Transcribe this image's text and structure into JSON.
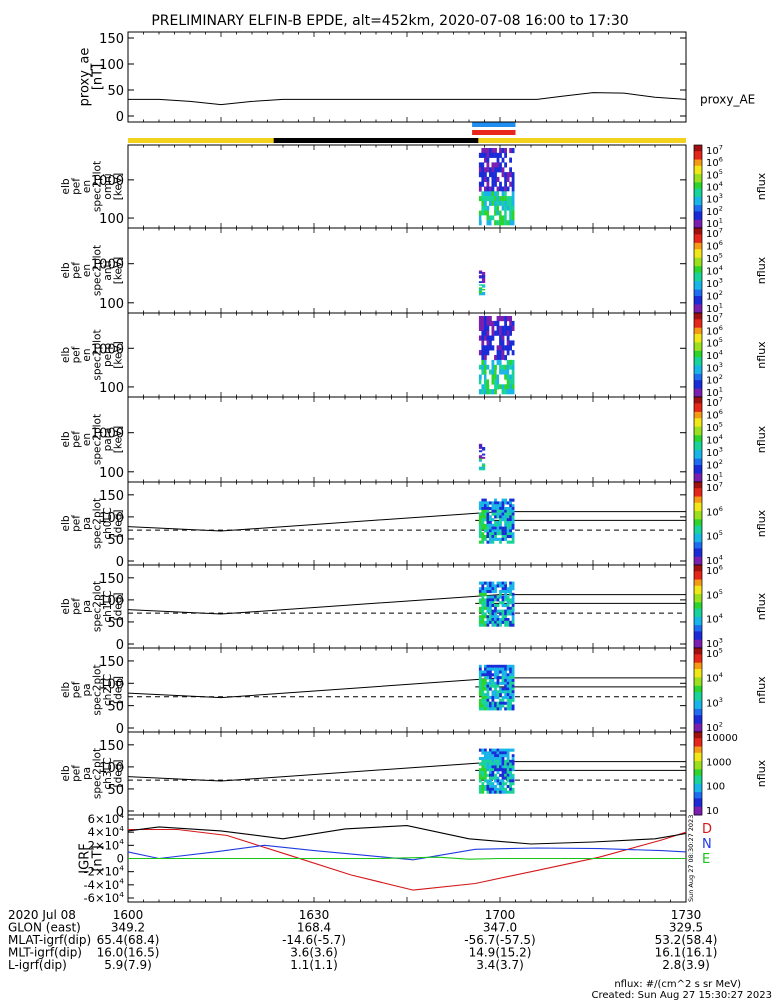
{
  "title": "PRELIMINARY ELFIN-B EPDE, alt=452km, 2020-07-08 16:00 to 17:30",
  "colors": {
    "yellow": "#f2d21c",
    "black": "#000000",
    "blue": "#1f8ef0",
    "red": "#e8261c"
  },
  "chart_data": [
    {
      "type": "line",
      "ylabel": [
        "proxy_ae",
        "[nT]"
      ],
      "yticks": [
        "150",
        "100",
        "50",
        "0"
      ],
      "ylim": [
        0,
        150
      ],
      "series": [
        {
          "name": "proxy_AE",
          "x": [
            0,
            5,
            10,
            15,
            20,
            25,
            30,
            35,
            40,
            45,
            50,
            55,
            60,
            63,
            66,
            70,
            75,
            80,
            85,
            90
          ],
          "y": [
            32,
            32,
            28,
            22,
            28,
            32,
            32,
            32,
            32,
            32,
            32,
            32,
            32,
            32,
            32,
            38,
            45,
            44,
            36,
            32
          ]
        }
      ]
    },
    {
      "type": "heatmap",
      "ylabel": [
        "elb",
        "pef",
        "en",
        "spec2plot",
        "omni",
        "[keV]"
      ],
      "yticks": [
        "1000",
        "100"
      ],
      "colorbar": {
        "label": "nflux",
        "ticks": [
          "10^7",
          "10^6",
          "10^5",
          "10^4",
          "10^3",
          "10^2",
          "10^1"
        ]
      }
    },
    {
      "type": "heatmap",
      "ylabel": [
        "elb",
        "pef",
        "en",
        "spec2plot",
        "anti",
        "[keV]"
      ],
      "yticks": [
        "1000",
        "100"
      ],
      "colorbar": {
        "label": "nflux",
        "ticks": [
          "10^7",
          "10^6",
          "10^5",
          "10^4",
          "10^3",
          "10^2",
          "10^1"
        ]
      }
    },
    {
      "type": "heatmap",
      "ylabel": [
        "elb",
        "pef",
        "en",
        "spec2plot",
        "perp",
        "[keV]"
      ],
      "yticks": [
        "1000",
        "100"
      ],
      "colorbar": {
        "label": "nflux",
        "ticks": [
          "10^7",
          "10^6",
          "10^5",
          "10^4",
          "10^3",
          "10^2",
          "10^1"
        ]
      }
    },
    {
      "type": "heatmap",
      "ylabel": [
        "elb",
        "pef",
        "en",
        "spec2plot",
        "para",
        "[keV]"
      ],
      "yticks": [
        "1000",
        "100"
      ],
      "colorbar": {
        "label": "nflux",
        "ticks": [
          "10^7",
          "10^6",
          "10^5",
          "10^4",
          "10^3",
          "10^2",
          "10^1"
        ]
      }
    },
    {
      "type": "heatmap",
      "ylabel": [
        "elb",
        "pef",
        "pa",
        "spec2plot",
        "ch0LC",
        "[deg]"
      ],
      "yticks": [
        "150",
        "100",
        "50",
        "0"
      ],
      "colorbar": {
        "label": "nflux",
        "ticks": [
          "10^7",
          "10^6",
          "10^5",
          "10^4"
        ]
      }
    },
    {
      "type": "heatmap",
      "ylabel": [
        "elb",
        "pef",
        "pa",
        "spec2plot",
        "ch1LC",
        "[deg]"
      ],
      "yticks": [
        "150",
        "100",
        "50",
        "0"
      ],
      "colorbar": {
        "label": "nflux",
        "ticks": [
          "10^6",
          "10^5",
          "10^4",
          "10^3"
        ]
      }
    },
    {
      "type": "heatmap",
      "ylabel": [
        "elb",
        "pef",
        "pa",
        "spec2plot",
        "ch2LC",
        "[deg]"
      ],
      "yticks": [
        "150",
        "100",
        "50",
        "0"
      ],
      "colorbar": {
        "label": "nflux",
        "ticks": [
          "10^5",
          "10^4",
          "10^3",
          "10^2"
        ]
      }
    },
    {
      "type": "heatmap",
      "ylabel": [
        "elb",
        "pef",
        "pa",
        "spec2plot",
        "ch3LC",
        "[deg]"
      ],
      "yticks": [
        "150",
        "100",
        "50",
        "0"
      ],
      "colorbar": {
        "label": "nflux",
        "ticks": [
          "10000",
          "1000",
          "100",
          "10"
        ]
      }
    },
    {
      "type": "line",
      "ylabel": [
        "IGRF",
        "[nT]"
      ],
      "yticks": [
        "6×10^4",
        "4×10^4",
        "2×10^4",
        "0",
        "−2×10^4",
        "−4×10^4",
        "−6×10^4"
      ],
      "ylim": [
        -60000,
        60000
      ],
      "legend": [
        "D",
        "N",
        "E"
      ],
      "series": [
        {
          "name": "D",
          "x": [
            0,
            8,
            16,
            26,
            36,
            46,
            56,
            66,
            76,
            86,
            90
          ],
          "y": [
            44000,
            44000,
            35000,
            5000,
            -25000,
            -48000,
            -38000,
            -18000,
            2000,
            28000,
            40000
          ]
        },
        {
          "name": "N",
          "x": [
            0,
            5,
            14,
            22,
            30,
            38,
            46,
            56,
            66,
            76,
            86,
            90
          ],
          "y": [
            10000,
            0,
            10000,
            20000,
            12000,
            5000,
            -2000,
            14000,
            16000,
            15000,
            12000,
            10000
          ]
        },
        {
          "name": "E",
          "x": [
            0,
            10,
            20,
            30,
            40,
            50,
            55,
            60,
            70,
            80,
            90
          ],
          "y": [
            0,
            0,
            0,
            0,
            0,
            2000,
            -1000,
            0,
            0,
            0,
            0
          ]
        },
        {
          "name": "",
          "x": [
            0,
            5,
            15,
            25,
            35,
            45,
            55,
            65,
            75,
            85,
            90
          ],
          "y": [
            42000,
            48000,
            42000,
            30000,
            45000,
            50000,
            30000,
            22000,
            25000,
            30000,
            38000
          ]
        }
      ]
    }
  ],
  "xaxis": {
    "row_labels": [
      "2020 Jul 08",
      "GLON (east)",
      "MLAT-igrf(dip)",
      "MLT-igrf(dip)",
      "L-igrf(dip)"
    ],
    "columns": [
      {
        "x": 0,
        "values": [
          "1600",
          "349.2",
          "65.4(68.4)",
          "16.0(16.5)",
          "5.9(7.9)"
        ]
      },
      {
        "x": 30,
        "values": [
          "1630",
          "168.4",
          "-14.6(-5.7)",
          "3.6(3.6)",
          "1.1(1.1)"
        ]
      },
      {
        "x": 60,
        "values": [
          "1700",
          "347.0",
          "-56.7(-57.5)",
          "14.9(15.2)",
          "3.4(3.7)"
        ]
      },
      {
        "x": 90,
        "values": [
          "1730",
          "329.5",
          "53.2(58.4)",
          "16.1(16.1)",
          "2.8(3.9)"
        ]
      }
    ]
  },
  "side_stamp": "Sun Aug 27 08:30:27 2023",
  "footer": {
    "units": "nflux: #/(cm^2 s sr MeV)",
    "created": "Created: Sun Aug 27 15:30:27 2023"
  }
}
